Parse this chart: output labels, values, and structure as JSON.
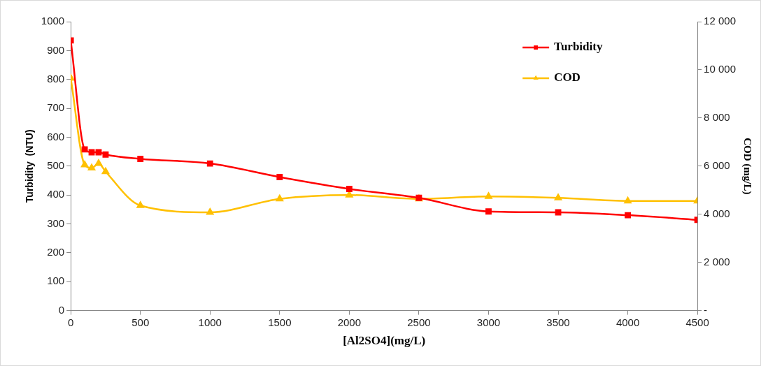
{
  "chart_data": {
    "type": "line",
    "xlabel": "[Al2SO4](mg/L)",
    "ylabel": "Turbidity  (NTU)",
    "y2label": "COD (mg/L)",
    "x": [
      0,
      100,
      150,
      200,
      250,
      500,
      1000,
      1500,
      2000,
      2500,
      3000,
      3500,
      4000,
      4500
    ],
    "series": [
      {
        "name": "Turbidity",
        "color": "#ff0000",
        "marker": "square",
        "values": [
          935,
          558,
          548,
          548,
          540,
          525,
          509,
          462,
          421,
          390,
          343,
          340,
          330,
          314
        ]
      },
      {
        "name": "COD",
        "color": "#ffc000",
        "marker": "triangle",
        "axis": "y2",
        "values": [
          9650,
          6050,
          5920,
          6110,
          5770,
          4360,
          4080,
          4640,
          4800,
          4640,
          4740,
          4680,
          4550,
          4550
        ]
      }
    ],
    "xlim": [
      0,
      4500
    ],
    "xticks": [
      0,
      500,
      1000,
      1500,
      2000,
      2500,
      3000,
      3500,
      4000,
      4500
    ],
    "ylim": [
      0,
      1000
    ],
    "yticks": [
      0,
      100,
      200,
      300,
      400,
      500,
      600,
      700,
      800,
      900,
      1000
    ],
    "y2lim": [
      0,
      12000
    ],
    "y2ticks": [
      {
        "value": 0,
        "label": "-"
      },
      {
        "value": 2000,
        "label": "2 000"
      },
      {
        "value": 4000,
        "label": "4 000"
      },
      {
        "value": 6000,
        "label": "6 000"
      },
      {
        "value": 8000,
        "label": "8 000"
      },
      {
        "value": 10000,
        "label": "10 000"
      },
      {
        "value": 12000,
        "label": "12 000"
      }
    ],
    "grid": false,
    "legend": "top right",
    "line_style": "solid"
  }
}
